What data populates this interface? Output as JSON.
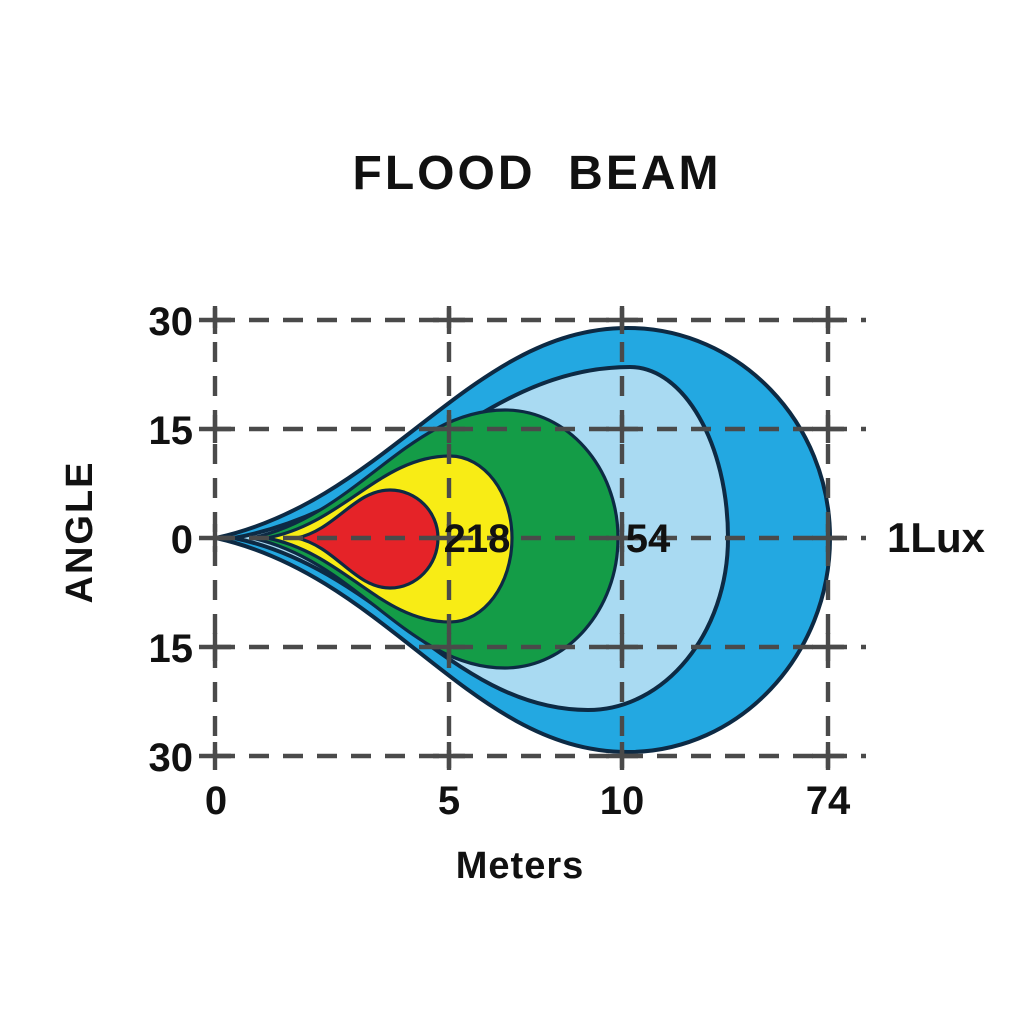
{
  "title": "FLOOD  BEAM",
  "colors": {
    "background": "#ffffff",
    "grid": "#4a4a4a",
    "text": "#111111",
    "contour_outline": "#0d2a44"
  },
  "chart_data": {
    "type": "area",
    "subtype": "isolux-beam-contour-plot",
    "title": "FLOOD  BEAM",
    "xlabel": "Meters",
    "ylabel": "ANGLE",
    "x_tick_labels": [
      "0",
      "5",
      "10",
      "74"
    ],
    "y_tick_labels": [
      "30",
      "15",
      "0",
      "15",
      "30"
    ],
    "x_tick_values_m": [
      0,
      5,
      10,
      74
    ],
    "y_tick_values_deg": [
      30,
      15,
      0,
      -15,
      -30
    ],
    "grid": "dashed",
    "legend": "none",
    "contours": [
      {
        "name": "outer-beam-1lux",
        "color": "#23a8e1",
        "outline": "#0d2a44",
        "reach_tick": "74"
      },
      {
        "name": "outer-mid-beam",
        "color": "#a9daf2",
        "outline": "#0d2a44"
      },
      {
        "name": "mid-beam-54lux",
        "color": "#149c47",
        "outline": "#0d2a44",
        "reach_tick": "10"
      },
      {
        "name": "inner-beam-218lux",
        "color": "#f8ec15",
        "outline": "#0d2a44",
        "reach_tick": "5"
      },
      {
        "name": "hot-spot",
        "color": "#e52328",
        "outline": "#0d2a44"
      }
    ],
    "annotations": [
      {
        "text": "218",
        "at_x_tick": "5",
        "at_y_deg": 0
      },
      {
        "text": "54",
        "at_x_tick": "10",
        "at_y_deg": 0
      },
      {
        "text": "1Lux",
        "position": "right-of-plot",
        "at_y_deg": 0
      }
    ]
  }
}
